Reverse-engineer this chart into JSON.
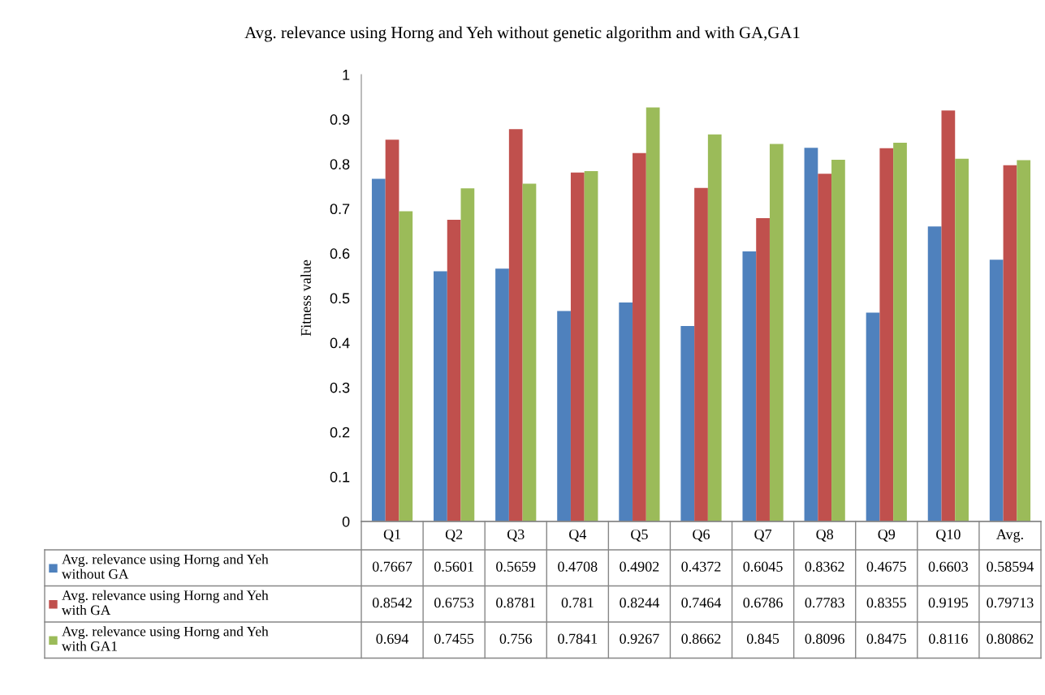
{
  "chart_data": {
    "type": "bar",
    "title": "Avg. relevance using Horng and Yeh without genetic algorithm and with GA,GA1",
    "ylabel": "Fitness value",
    "categories": [
      "Q1",
      "Q2",
      "Q3",
      "Q4",
      "Q5",
      "Q6",
      "Q7",
      "Q8",
      "Q9",
      "Q10",
      "Avg."
    ],
    "series": [
      {
        "name": "Avg. relevance using Horng and Yeh\nwithout GA",
        "color": "#4f81bd",
        "values": [
          0.7667,
          0.5601,
          0.5659,
          0.4708,
          0.4902,
          0.4372,
          0.6045,
          0.8362,
          0.4675,
          0.6603,
          0.58594
        ]
      },
      {
        "name": "Avg. relevance using Horng and Yeh\nwith GA",
        "color": "#c0504d",
        "values": [
          0.8542,
          0.6753,
          0.8781,
          0.781,
          0.8244,
          0.7464,
          0.6786,
          0.7783,
          0.8355,
          0.9195,
          0.79713
        ]
      },
      {
        "name": "Avg. relevance using Horng and Yeh\nwith GA1",
        "color": "#9bbb59",
        "values": [
          0.694,
          0.7455,
          0.756,
          0.7841,
          0.9267,
          0.8662,
          0.845,
          0.8096,
          0.8475,
          0.8116,
          0.80862
        ]
      }
    ],
    "ylim": [
      0,
      1
    ],
    "yticks": [
      0,
      0.1,
      0.2,
      0.3,
      0.4,
      0.5,
      0.6,
      0.7,
      0.8,
      0.9,
      1
    ],
    "data_labels": true,
    "legend": "bottom",
    "grid": false
  }
}
